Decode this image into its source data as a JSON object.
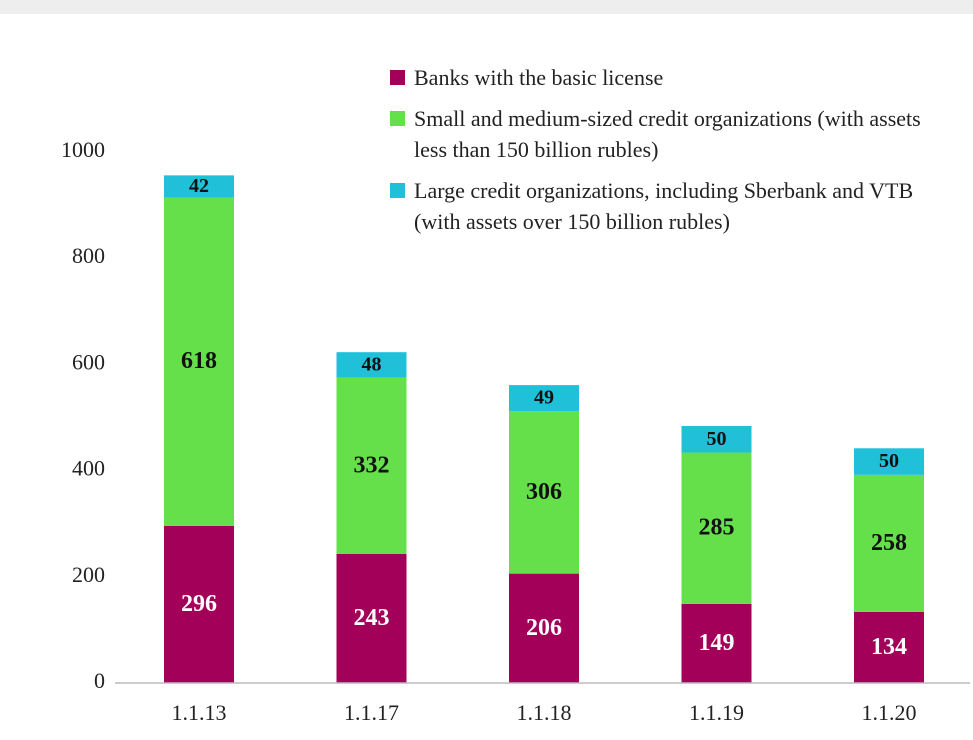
{
  "chart_data": {
    "type": "stacked_bar",
    "categories": [
      "1.1.13",
      "1.1.17",
      "1.1.18",
      "1.1.19",
      "1.1.20"
    ],
    "series": [
      {
        "name": "Banks with the basic license",
        "color": "#a3005a",
        "values": [
          296,
          243,
          206,
          149,
          134
        ]
      },
      {
        "name": "Small and medium-sized credit organizations (with assets less than 150 billion rubles)",
        "color": "#66e04a",
        "values": [
          618,
          332,
          306,
          285,
          258
        ]
      },
      {
        "name": "Large credit organizations, including Sberbank and VTB (with assets over 150 billion rubles)",
        "color": "#1fc0d8",
        "values": [
          42,
          48,
          49,
          50,
          50
        ]
      }
    ],
    "ylim": [
      0,
      1000
    ],
    "yticks": [
      0,
      200,
      400,
      600,
      800,
      1000
    ],
    "grid": false,
    "legend": "top-right"
  }
}
